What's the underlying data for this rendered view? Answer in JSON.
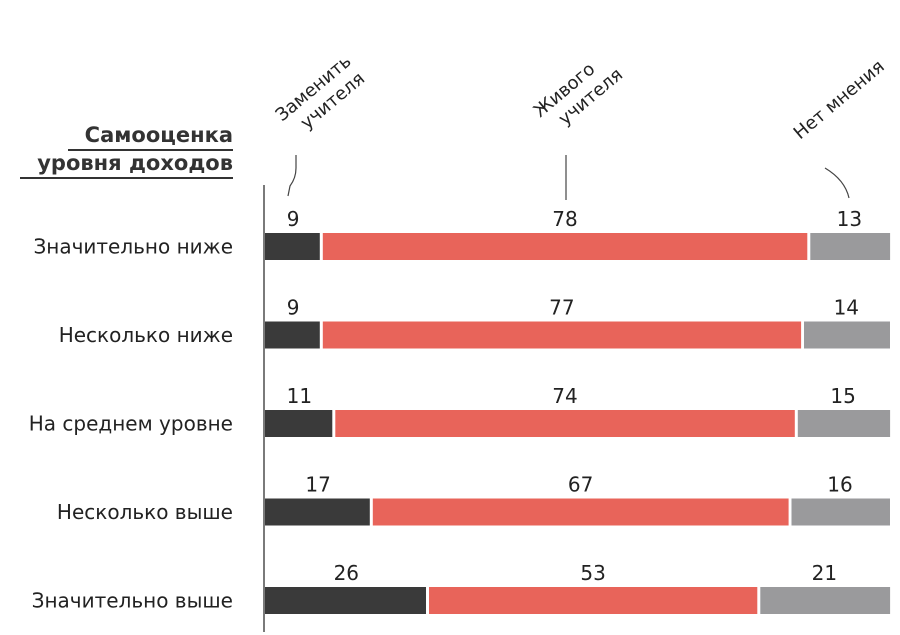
{
  "chart_data": {
    "type": "bar",
    "orientation": "horizontal",
    "stacked": true,
    "normalized_percent": true,
    "y_title": [
      "Самооценка",
      "уровня доходов"
    ],
    "categories": [
      "Значительно ниже",
      "Несколько ниже",
      "На среднем уровне",
      "Несколько выше",
      "Значительно выше"
    ],
    "series": [
      {
        "name": "Заменить учителя",
        "label_lines": [
          "Заменить",
          "учителя"
        ],
        "color": "#3a3a3a",
        "values": [
          9,
          9,
          11,
          17,
          26
        ]
      },
      {
        "name": "Живого учителя",
        "label_lines": [
          "Живого",
          "учителя"
        ],
        "color": "#e8645a",
        "values": [
          78,
          77,
          74,
          67,
          53
        ]
      },
      {
        "name": "Нет мнения",
        "label_lines": [
          "Нет мнения"
        ],
        "color": "#9a9a9c",
        "values": [
          13,
          14,
          15,
          16,
          21
        ]
      }
    ],
    "xlim": [
      0,
      100
    ],
    "grid": false,
    "legend": "top, rotated labels with leader lines to first row"
  }
}
